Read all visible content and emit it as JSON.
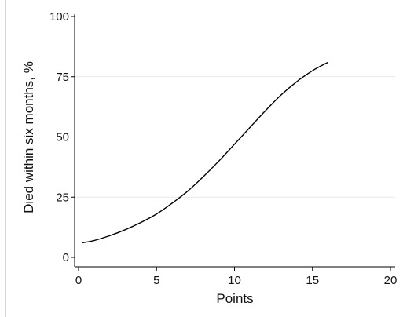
{
  "chart_data": {
    "type": "line",
    "title": "",
    "xlabel": "Points",
    "ylabel": "Died within six months, %",
    "xlim": [
      0,
      20
    ],
    "ylim": [
      0,
      100
    ],
    "x_ticks": [
      0,
      5,
      10,
      15,
      20
    ],
    "y_ticks": [
      0,
      25,
      50,
      75,
      100
    ],
    "grid": "horizontal",
    "legend": "none",
    "line_color": "#000000",
    "series": [
      {
        "x": [
          0.2,
          1,
          2,
          3,
          4,
          5,
          6,
          7,
          8,
          9,
          10,
          11,
          12,
          13,
          14,
          15,
          16
        ],
        "values": [
          6.0,
          7.0,
          9.0,
          11.5,
          14.5,
          18.0,
          22.5,
          27.5,
          33.5,
          40.0,
          47.0,
          54.0,
          61.0,
          67.5,
          73.0,
          77.5,
          81.0
        ]
      }
    ]
  }
}
